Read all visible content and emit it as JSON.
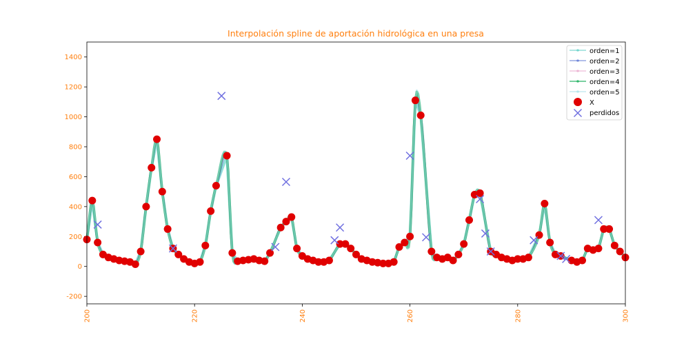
{
  "chart_data": {
    "type": "line",
    "title": "Interpolación spline de aportación hidrológica en una presa",
    "xlabel": "",
    "ylabel": "",
    "xlim": [
      200,
      300
    ],
    "ylim": [
      -250,
      1500
    ],
    "x_ticks": [
      200,
      220,
      240,
      260,
      280,
      300
    ],
    "y_ticks": [
      -200,
      0,
      200,
      400,
      600,
      800,
      1000,
      1200,
      1400
    ],
    "grid": false,
    "legend_position": "top-right",
    "accent_color": "#ff7f0e",
    "legend": {
      "orden1": "orden=1",
      "orden2": "orden=2",
      "orden3": "orden=3",
      "orden4": "orden=4",
      "orden5": "orden=5",
      "x": "X",
      "perdidos": "perdidos"
    },
    "series": [
      {
        "key": "orden1",
        "name": "orden=1",
        "color": "#4ec9c0",
        "opacity": 0.6
      },
      {
        "key": "orden2",
        "name": "orden=2",
        "color": "#3050c8",
        "opacity": 0.5
      },
      {
        "key": "orden3",
        "name": "orden=3",
        "color": "#e8a0c8",
        "opacity": 0.5
      },
      {
        "key": "orden4",
        "name": "orden=4",
        "color": "#20b060",
        "opacity": 0.8
      },
      {
        "key": "orden5",
        "name": "orden=5",
        "color": "#a0e0e8",
        "opacity": 0.5
      }
    ],
    "observed": {
      "name": "X",
      "color": "#e00000",
      "x": [
        200,
        201,
        202,
        203,
        204,
        205,
        206,
        207,
        208,
        209,
        210,
        211,
        212,
        213,
        214,
        215,
        216,
        217,
        218,
        219,
        220,
        221,
        222,
        223,
        224,
        226,
        227,
        228,
        229,
        230,
        231,
        232,
        233,
        234,
        236,
        237,
        238,
        239,
        240,
        241,
        242,
        243,
        244,
        245,
        247,
        248,
        249,
        250,
        251,
        252,
        253,
        254,
        255,
        256,
        257,
        258,
        259,
        260,
        261,
        262,
        264,
        265,
        266,
        267,
        268,
        269,
        270,
        271,
        272,
        273,
        275,
        276,
        277,
        278,
        279,
        280,
        281,
        282,
        284,
        285,
        286,
        287,
        288,
        290,
        291,
        292,
        293,
        294,
        295,
        296,
        297,
        298,
        299,
        300
      ],
      "y": [
        180,
        440,
        160,
        80,
        60,
        50,
        40,
        35,
        30,
        15,
        100,
        400,
        660,
        850,
        500,
        250,
        120,
        80,
        50,
        30,
        20,
        30,
        140,
        370,
        540,
        740,
        90,
        35,
        40,
        45,
        50,
        40,
        35,
        90,
        260,
        300,
        330,
        120,
        70,
        50,
        40,
        30,
        30,
        40,
        150,
        150,
        120,
        80,
        50,
        40,
        30,
        25,
        20,
        20,
        30,
        130,
        160,
        200,
        1110,
        1010,
        100,
        60,
        50,
        60,
        40,
        80,
        150,
        310,
        480,
        490,
        100,
        80,
        60,
        50,
        40,
        50,
        50,
        60,
        210,
        420,
        160,
        80,
        70,
        40,
        30,
        40,
        120,
        110,
        120,
        250,
        250,
        140,
        100,
        60
      ]
    },
    "missing": {
      "name": "perdidos",
      "color": "#7070e0",
      "x": [
        202,
        216,
        225,
        235,
        237,
        246,
        247,
        260,
        263,
        273,
        274,
        275,
        283,
        288,
        289,
        295
      ],
      "y": [
        280,
        120,
        1140,
        130,
        565,
        175,
        260,
        740,
        195,
        450,
        220,
        100,
        175,
        70,
        50,
        310
      ]
    }
  }
}
